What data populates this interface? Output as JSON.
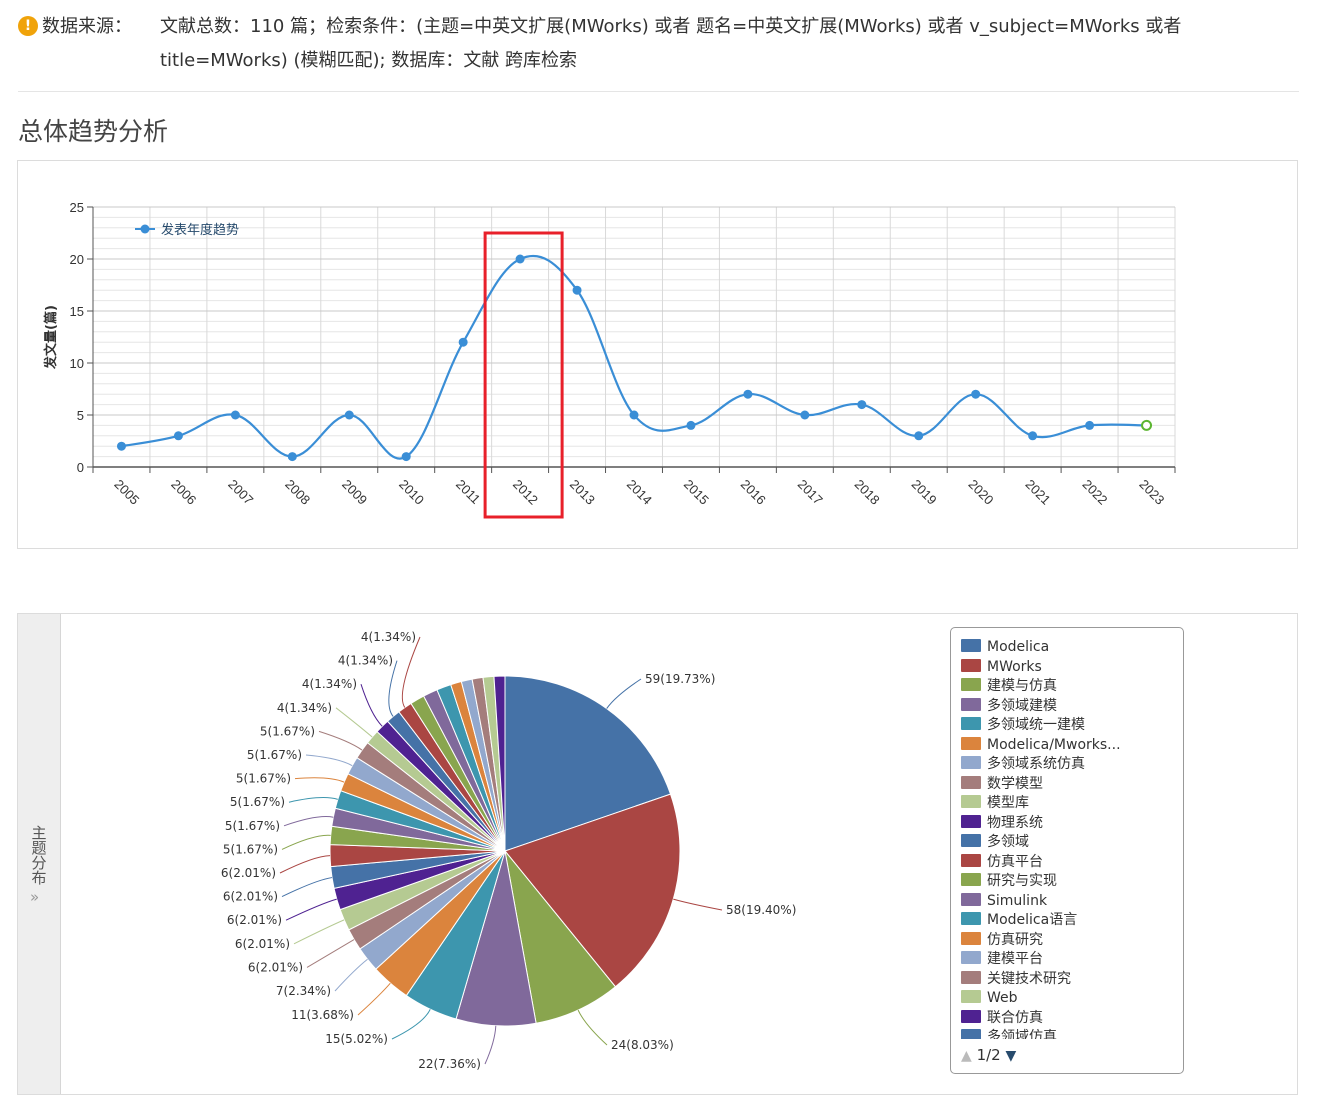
{
  "header": {
    "warning_icon": "exclamation-circle-icon",
    "source_label": "数据来源：",
    "source_text": "文献总数：110 篇；检索条件：(主题=中英文扩展(MWorks) 或者 题名=中英文扩展(MWorks) 或者 v_subject=MWorks 或者 title=MWorks) (模糊匹配); 数据库：文献 跨库检索"
  },
  "section_title": "总体趋势分析",
  "side_tab": {
    "label": "主题分布",
    "expand_icon": "double-chevron-right-icon"
  },
  "highlight_color": "#e8202a",
  "chart_data": [
    {
      "type": "line",
      "legend": [
        "发表年度趋势"
      ],
      "legend_position": "top-left",
      "ylabel": "发文量(篇)",
      "ylim": [
        0,
        25
      ],
      "yticks": [
        0,
        5,
        10,
        15,
        20,
        25
      ],
      "grid": true,
      "x": [
        "2005",
        "2006",
        "2007",
        "2008",
        "2009",
        "2010",
        "2011",
        "2012",
        "2013",
        "2014",
        "2015",
        "2016",
        "2017",
        "2018",
        "2019",
        "2020",
        "2021",
        "2022",
        "2023"
      ],
      "series": [
        {
          "name": "发表年度趋势",
          "color": "#3a8ed6",
          "values": [
            2,
            3,
            5,
            1,
            5,
            1,
            12,
            20,
            17,
            5,
            4,
            7,
            5,
            6,
            3,
            7,
            3,
            4,
            4
          ]
        }
      ],
      "highlighted_category": "2012",
      "last_point_style": "hollow-green"
    },
    {
      "type": "pie",
      "slices": [
        {
          "name": "Modelica",
          "value": 59,
          "label": "59(19.73%)",
          "color": "#4572a7"
        },
        {
          "name": "MWorks",
          "value": 58,
          "label": "58(19.40%)",
          "color": "#aa4643"
        },
        {
          "name": "建模与仿真",
          "value": 24,
          "label": "24(8.03%)",
          "color": "#89a54e"
        },
        {
          "name": "多领域建模",
          "value": 22,
          "label": "22(7.36%)",
          "color": "#80699b"
        },
        {
          "name": "多领域统一建模",
          "value": 15,
          "label": "15(5.02%)",
          "color": "#3d96ae"
        },
        {
          "name": "Modelica/Mworks...",
          "value": 11,
          "label": "11(3.68%)",
          "color": "#db843d"
        },
        {
          "name": "多领域系统仿真",
          "value": 7,
          "label": "7(2.34%)",
          "color": "#92a8cd"
        },
        {
          "name": "数学模型",
          "value": 6,
          "label": "6(2.01%)",
          "color": "#a47d7c"
        },
        {
          "name": "模型库",
          "value": 6,
          "label": "6(2.01%)",
          "color": "#b5ca92"
        },
        {
          "name": "物理系统",
          "value": 6,
          "label": "6(2.01%)",
          "color": "#4f2291"
        },
        {
          "name": "多领域",
          "value": 6,
          "label": "6(2.01%)",
          "color": "#4572a7"
        },
        {
          "name": "仿真平台",
          "value": 6,
          "label": "6(2.01%)",
          "color": "#aa4643"
        },
        {
          "name": "研究与实现",
          "value": 5,
          "label": "5(1.67%)",
          "color": "#89a54e"
        },
        {
          "name": "Simulink",
          "value": 5,
          "label": "5(1.67%)",
          "color": "#80699b"
        },
        {
          "name": "Modelica语言",
          "value": 5,
          "label": "5(1.67%)",
          "color": "#3d96ae"
        },
        {
          "name": "仿真研究",
          "value": 5,
          "label": "5(1.67%)",
          "color": "#db843d"
        },
        {
          "name": "建模平台",
          "value": 5,
          "label": "5(1.67%)",
          "color": "#92a8cd"
        },
        {
          "name": "关键技术研究",
          "value": 5,
          "label": "5(1.67%)",
          "color": "#a47d7c"
        },
        {
          "name": "Web",
          "value": 4,
          "label": "4(1.34%)",
          "color": "#b5ca92"
        },
        {
          "name": "联合仿真",
          "value": 4,
          "label": "4(1.34%)",
          "color": "#4f2291"
        },
        {
          "name": "多领域仿真",
          "value": 4,
          "label": "4(1.34%)",
          "color": "#4572a7"
        },
        {
          "name": "",
          "value": 4,
          "label": "4(1.34%)",
          "color": "#aa4643"
        },
        {
          "name": "",
          "value": 4,
          "label": "",
          "color": "#89a54e"
        },
        {
          "name": "",
          "value": 4,
          "label": "",
          "color": "#80699b"
        },
        {
          "name": "",
          "value": 4,
          "label": "",
          "color": "#3d96ae"
        },
        {
          "name": "",
          "value": 3,
          "label": "",
          "color": "#db843d"
        },
        {
          "name": "",
          "value": 3,
          "label": "",
          "color": "#92a8cd"
        },
        {
          "name": "",
          "value": 3,
          "label": "",
          "color": "#a47d7c"
        },
        {
          "name": "",
          "value": 3,
          "label": "",
          "color": "#b5ca92"
        },
        {
          "name": "",
          "value": 3,
          "label": "",
          "color": "#4f2291"
        }
      ],
      "legend_items": [
        "Modelica",
        "MWorks",
        "建模与仿真",
        "多领域建模",
        "多领域统一建模",
        "Modelica/Mworks...",
        "多领域系统仿真",
        "数学模型",
        "模型库",
        "物理系统",
        "多领域",
        "仿真平台",
        "研究与实现",
        "Simulink",
        "Modelica语言",
        "仿真研究",
        "建模平台",
        "关键技术研究",
        "Web",
        "联合仿真",
        "多领域仿真"
      ],
      "legend_page": "1/2"
    }
  ]
}
